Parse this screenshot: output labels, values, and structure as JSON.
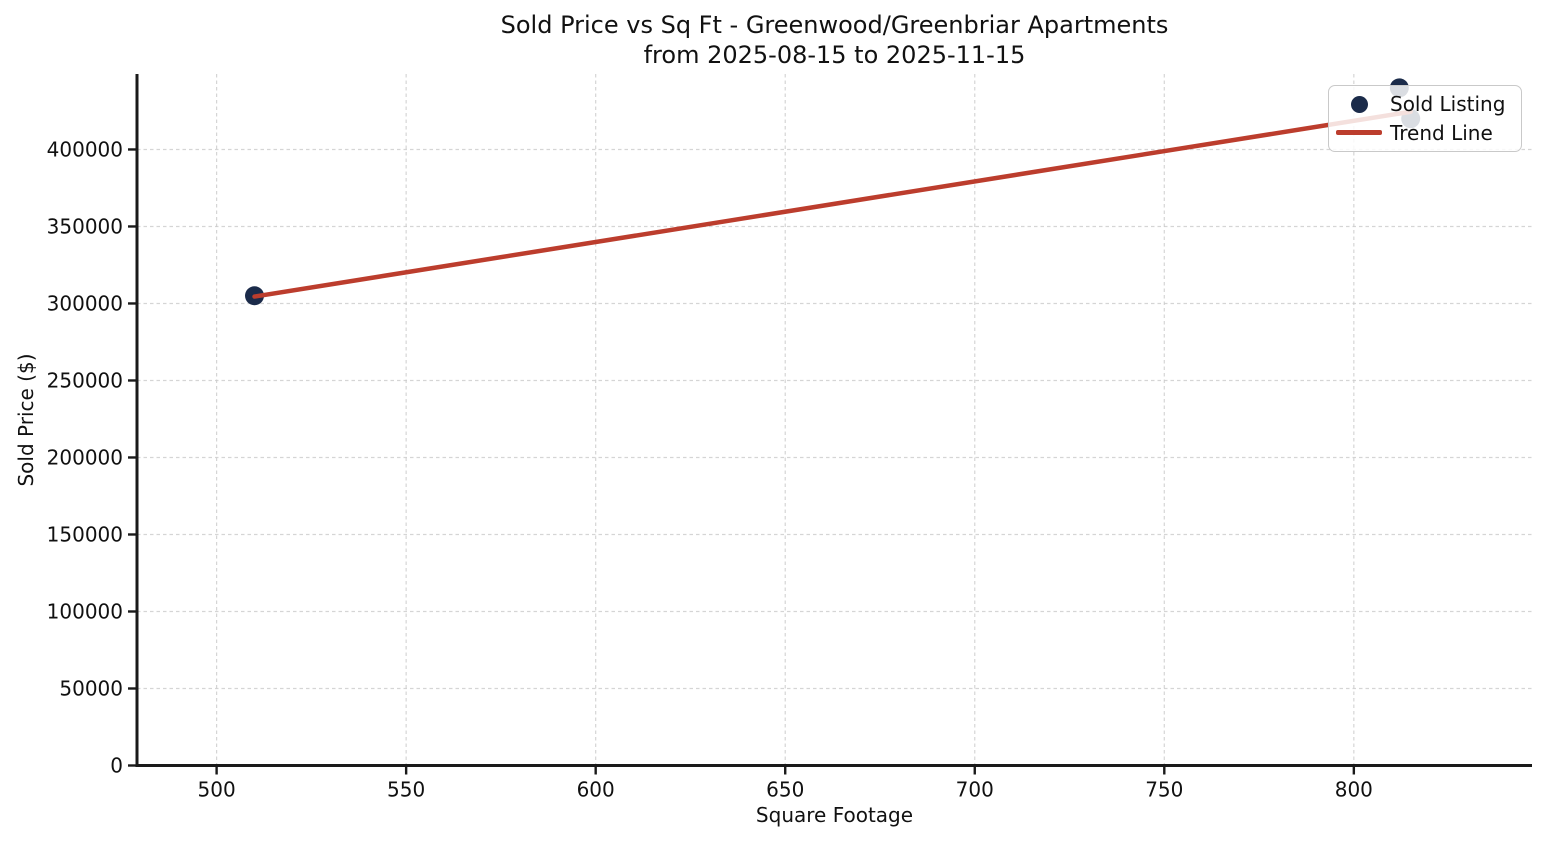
{
  "titles": {
    "line1": "Sold Price vs Sq Ft - Greenwood/Greenbriar Apartments",
    "line2": "from 2025-08-15 to 2025-11-15"
  },
  "legend": {
    "position": "upper right",
    "items": [
      {
        "label": "Sold Listing",
        "marker": "dot",
        "color": "#1b2b4a"
      },
      {
        "label": "Trend Line",
        "marker": "line",
        "color": "#bc3d2d"
      }
    ]
  },
  "chart_data": {
    "type": "scatter",
    "title": "Sold Price vs Sq Ft - Greenwood/Greenbriar Apartments\nfrom 2025-08-15 to 2025-11-15",
    "xlabel": "Square Footage",
    "ylabel": "Sold Price ($)",
    "xlim": [
      479,
      847
    ],
    "ylim": [
      0,
      449000
    ],
    "x_ticks": [
      500,
      550,
      600,
      650,
      700,
      750,
      800
    ],
    "y_ticks": [
      0,
      50000,
      100000,
      150000,
      200000,
      250000,
      300000,
      350000,
      400000
    ],
    "grid": true,
    "legend_position": "upper right",
    "series": [
      {
        "name": "Sold Listing",
        "type": "scatter",
        "color": "#1b2b4a",
        "x": [
          510,
          812,
          815
        ],
        "y": [
          305000,
          440000,
          420000
        ]
      },
      {
        "name": "Trend Line",
        "type": "line",
        "color": "#bc3d2d",
        "x": [
          510,
          815
        ],
        "y": [
          304500,
          424500
        ]
      }
    ]
  }
}
